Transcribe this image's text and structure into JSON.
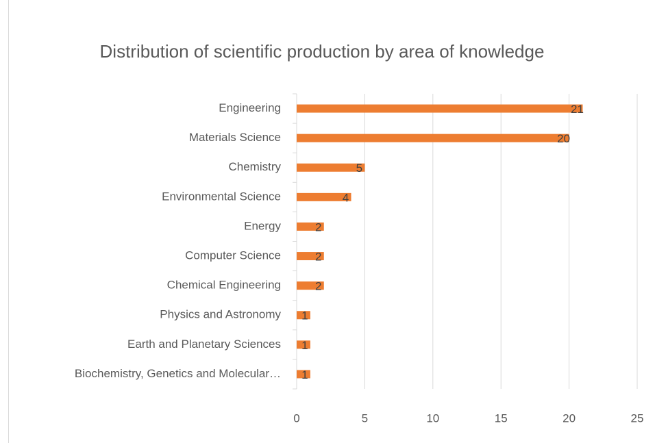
{
  "chart_data": {
    "type": "bar",
    "orientation": "horizontal",
    "title": "Distribution of scientific production by area of knowledge",
    "categories": [
      "Engineering",
      "Materials Science",
      "Chemistry",
      "Environmental Science",
      "Energy",
      "Computer Science",
      "Chemical Engineering",
      "Physics and Astronomy",
      "Earth and Planetary Sciences",
      "Biochemistry, Genetics and Molecular…"
    ],
    "values": [
      21,
      20,
      5,
      4,
      2,
      2,
      2,
      1,
      1,
      1
    ],
    "color": "#ed7d31",
    "xlim": [
      0,
      25
    ],
    "xticks": [
      0,
      5,
      10,
      15,
      20,
      25
    ],
    "grid": true
  }
}
